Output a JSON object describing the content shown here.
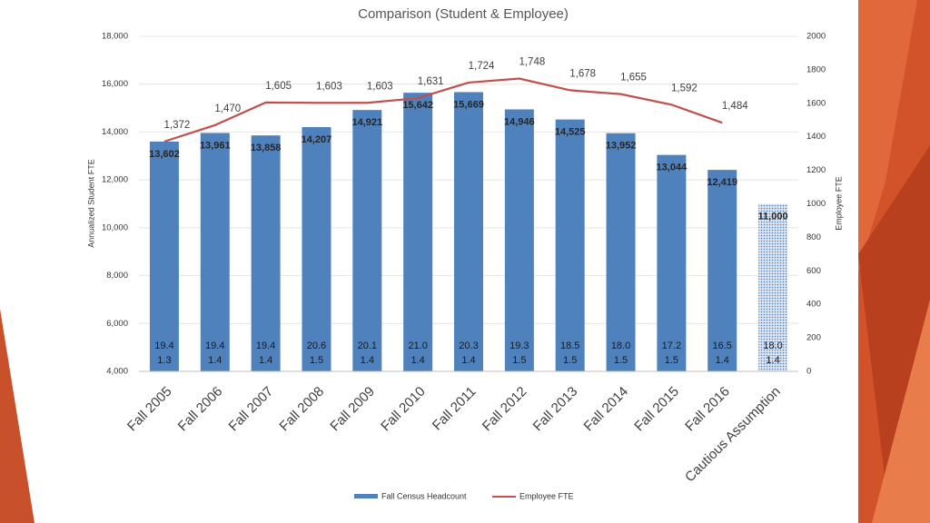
{
  "chart_data": {
    "type": "bar_line",
    "title": "Comparison (Student & Employee)",
    "y_axis_label": "Annualized Student FTE",
    "y2_axis_label": "Employee FTE",
    "categories": [
      "Fall 2005",
      "Fall 2006",
      "Fall 2007",
      "Fall 2008",
      "Fall 2009",
      "Fall 2010",
      "Fall 2011",
      "Fall 2012",
      "Fall 2013",
      "Fall 2014",
      "Fall 2015",
      "Fall 2016",
      "Cautious Assumption"
    ],
    "series": [
      {
        "name": "Fall Census Headcount",
        "type": "bar",
        "color": "#4f81bd",
        "values": [
          13602,
          13961,
          13858,
          14207,
          14921,
          15642,
          15669,
          14946,
          14525,
          13952,
          13044,
          12419,
          11000
        ],
        "value_labels": [
          "13,602",
          "13,961",
          "13,858",
          "14,207",
          "14,921",
          "15,642",
          "15,669",
          "14,946",
          "14,525",
          "13,952",
          "13,044",
          "12,419",
          "11,000"
        ],
        "bar_styles": [
          "solid",
          "solid",
          "solid",
          "solid",
          "solid",
          "solid",
          "solid",
          "solid",
          "solid",
          "solid",
          "solid",
          "solid",
          "dotted"
        ]
      },
      {
        "name": "Employee FTE",
        "type": "line",
        "axis": "y2",
        "color": "#c0504d",
        "values": [
          1372,
          1470,
          1605,
          1603,
          1603,
          1631,
          1724,
          1748,
          1678,
          1655,
          1592,
          1484,
          null
        ],
        "value_labels": [
          "1,372",
          "1,470",
          "1,605",
          "1,603",
          "1,603",
          "1,631",
          "1,724",
          "1,748",
          "1,678",
          "1,655",
          "1,592",
          "1,484",
          null
        ]
      }
    ],
    "bar_annotations": [
      [
        "19.4",
        "19.4",
        "19.4",
        "20.6",
        "20.1",
        "21.0",
        "20.3",
        "19.3",
        "18.5",
        "18.0",
        "17.2",
        "16.5",
        "18.0"
      ],
      [
        "1.3",
        "1.4",
        "1.4",
        "1.5",
        "1.4",
        "1.4",
        "1.4",
        "1.5",
        "1.5",
        "1.5",
        "1.5",
        "1.4",
        "1.4"
      ]
    ],
    "ylim": [
      4000,
      18000
    ],
    "yticks": [
      {
        "value": 4000,
        "label": "4,000"
      },
      {
        "value": 6000,
        "label": "6,000"
      },
      {
        "value": 8000,
        "label": "8,000"
      },
      {
        "value": 10000,
        "label": "10,000"
      },
      {
        "value": 12000,
        "label": "12,000"
      },
      {
        "value": 14000,
        "label": "14,000"
      },
      {
        "value": 16000,
        "label": "16,000"
      },
      {
        "value": 18000,
        "label": "18,000"
      }
    ],
    "y2lim": [
      0,
      2000
    ],
    "y2ticks": [
      0,
      200,
      400,
      600,
      800,
      1000,
      1200,
      1400,
      1600,
      1800,
      2000
    ],
    "grid": true,
    "legend": "bottom"
  }
}
